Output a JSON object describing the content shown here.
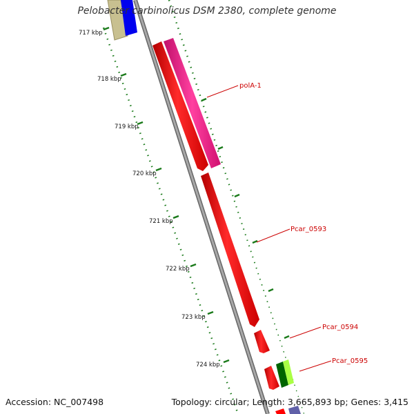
{
  "title": "Pelobacter carbinolicus DSM 2380, complete genome",
  "footer": {
    "accession": "Accession: NC_007498",
    "summary": "Topology: circular; Length: 3,665,893 bp; Genes: 3,415"
  },
  "ticks": [
    "717 kbp",
    "718 kbp",
    "719 kbp",
    "720 kbp",
    "721 kbp",
    "722 kbp",
    "723 kbp",
    "724 kbp"
  ],
  "genes": [
    {
      "name": "polA-1"
    },
    {
      "name": "Pcar_0593"
    },
    {
      "name": "Pcar_0594"
    },
    {
      "name": "Pcar_0595"
    }
  ],
  "colors": {
    "backbone": "#8a8a8a",
    "cds_forward": "#ff0000",
    "gene_pink": "#ff1493",
    "gene_label": "#cc0000",
    "tick_green": "#1a7a1a"
  }
}
